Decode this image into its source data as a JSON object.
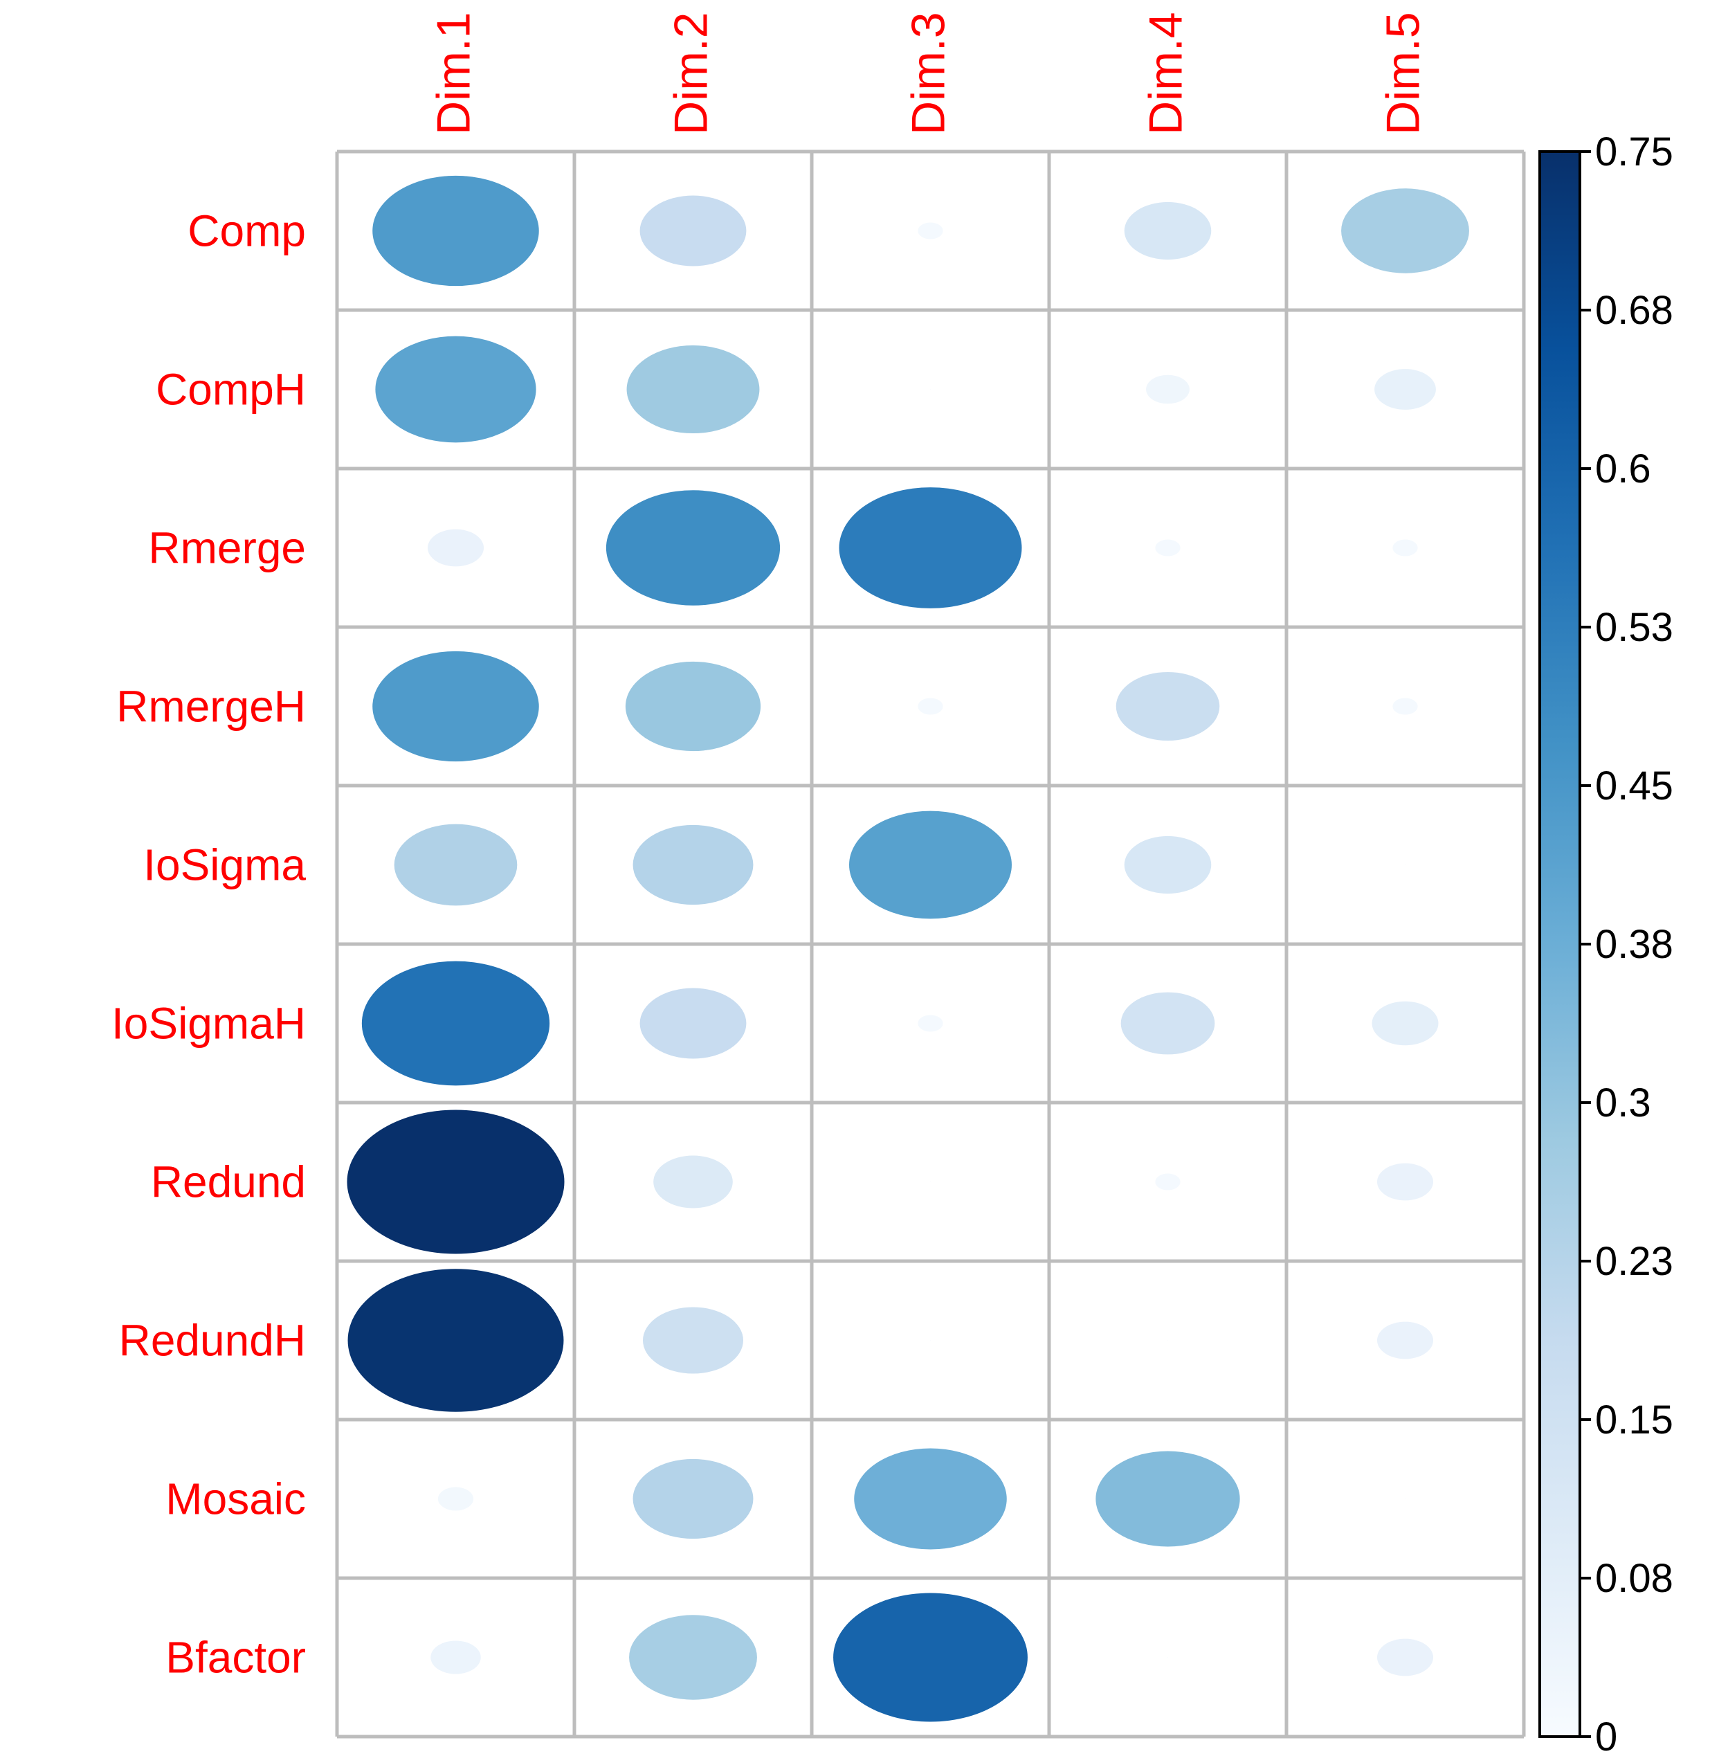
{
  "chart_data": {
    "type": "heatmap",
    "subtype": "circle-correlation-plot",
    "title": "",
    "columns": [
      "Dim.1",
      "Dim.2",
      "Dim.3",
      "Dim.4",
      "Dim.5"
    ],
    "rows": [
      "Comp",
      "CompH",
      "Rmerge",
      "RmergeH",
      "IoSigma",
      "IoSigmaH",
      "Redund",
      "RedundH",
      "Mosaic",
      "Bfactor"
    ],
    "values": [
      [
        0.44,
        0.18,
        0.01,
        0.12,
        0.26
      ],
      [
        0.41,
        0.28,
        0.0,
        0.03,
        0.06
      ],
      [
        0.05,
        0.48,
        0.53,
        0.01,
        0.01
      ],
      [
        0.44,
        0.29,
        0.01,
        0.17,
        0.01
      ],
      [
        0.24,
        0.23,
        0.42,
        0.12,
        0.0
      ],
      [
        0.56,
        0.18,
        0.01,
        0.14,
        0.07
      ],
      [
        0.75,
        0.1,
        0.0,
        0.01,
        0.05
      ],
      [
        0.74,
        0.16,
        0.0,
        0.0,
        0.05
      ],
      [
        0.02,
        0.23,
        0.37,
        0.33,
        0.0
      ],
      [
        0.04,
        0.26,
        0.6,
        0.0,
        0.05
      ]
    ],
    "colorbar": {
      "min": 0,
      "max": 0.75,
      "tick_labels": [
        "0",
        "0.08",
        "0.15",
        "0.23",
        "0.3",
        "0.38",
        "0.45",
        "0.53",
        "0.6",
        "0.68",
        "0.75"
      ],
      "tick_values": [
        0,
        0.075,
        0.15,
        0.225,
        0.3,
        0.375,
        0.45,
        0.525,
        0.6,
        0.675,
        0.75
      ],
      "low_color": "#f7fbff",
      "high_color": "#08306b",
      "placement": "right"
    },
    "label_color": "#ff0000",
    "grid": true
  }
}
